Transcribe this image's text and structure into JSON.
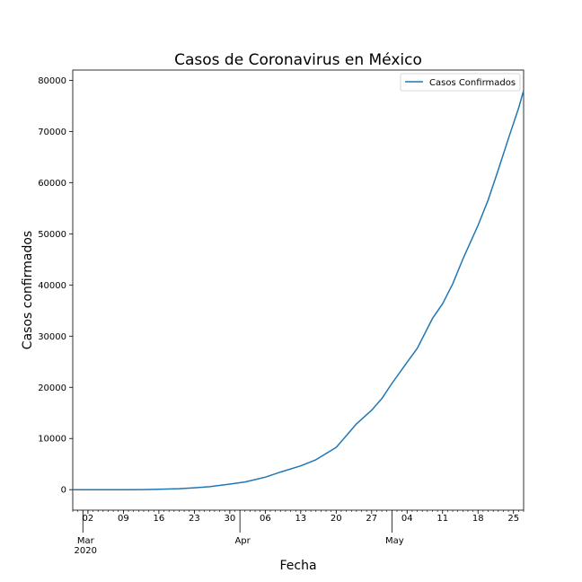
{
  "chart_data": {
    "type": "line",
    "title": "Casos de Coronavirus en México",
    "xlabel": "Fecha",
    "ylabel": "Casos confirmados",
    "x_range": [
      "2020-02-28",
      "2020-05-27"
    ],
    "ylim": [
      -4000,
      82000
    ],
    "y_ticks": [
      0,
      10000,
      20000,
      30000,
      40000,
      50000,
      60000,
      70000,
      80000
    ],
    "x_minor_ticks": [
      {
        "date": "2020-03-02",
        "label": "02"
      },
      {
        "date": "2020-03-09",
        "label": "09"
      },
      {
        "date": "2020-03-16",
        "label": "16"
      },
      {
        "date": "2020-03-23",
        "label": "23"
      },
      {
        "date": "2020-03-30",
        "label": "30"
      },
      {
        "date": "2020-04-06",
        "label": "06"
      },
      {
        "date": "2020-04-13",
        "label": "13"
      },
      {
        "date": "2020-04-20",
        "label": "20"
      },
      {
        "date": "2020-04-27",
        "label": "27"
      },
      {
        "date": "2020-05-04",
        "label": "04"
      },
      {
        "date": "2020-05-11",
        "label": "11"
      },
      {
        "date": "2020-05-18",
        "label": "18"
      },
      {
        "date": "2020-05-25",
        "label": "25"
      }
    ],
    "x_major_ticks": [
      {
        "date": "2020-03-01",
        "label": "Mar",
        "sublabel": "2020"
      },
      {
        "date": "2020-04-01",
        "label": "Apr",
        "sublabel": ""
      },
      {
        "date": "2020-05-01",
        "label": "May",
        "sublabel": ""
      }
    ],
    "legend_position": "top-right",
    "grid": false,
    "series": [
      {
        "name": "Casos Confirmados",
        "color": "#1f77b4",
        "x": [
          "2020-02-28",
          "2020-03-02",
          "2020-03-09",
          "2020-03-13",
          "2020-03-16",
          "2020-03-20",
          "2020-03-23",
          "2020-03-26",
          "2020-03-30",
          "2020-04-02",
          "2020-04-06",
          "2020-04-09",
          "2020-04-13",
          "2020-04-16",
          "2020-04-20",
          "2020-04-22",
          "2020-04-24",
          "2020-04-27",
          "2020-04-29",
          "2020-05-01",
          "2020-05-04",
          "2020-05-06",
          "2020-05-09",
          "2020-05-11",
          "2020-05-13",
          "2020-05-15",
          "2020-05-18",
          "2020-05-20",
          "2020-05-22",
          "2020-05-24",
          "2020-05-26",
          "2020-05-27"
        ],
        "y": [
          1,
          5,
          7,
          26,
          82,
          203,
          367,
          585,
          1094,
          1510,
          2439,
          3441,
          4661,
          5847,
          8261,
          10544,
          12872,
          15529,
          17799,
          20739,
          24905,
          27634,
          33460,
          36327,
          40186,
          45032,
          51633,
          56594,
          62527,
          68620,
          74560,
          78023
        ]
      }
    ]
  }
}
